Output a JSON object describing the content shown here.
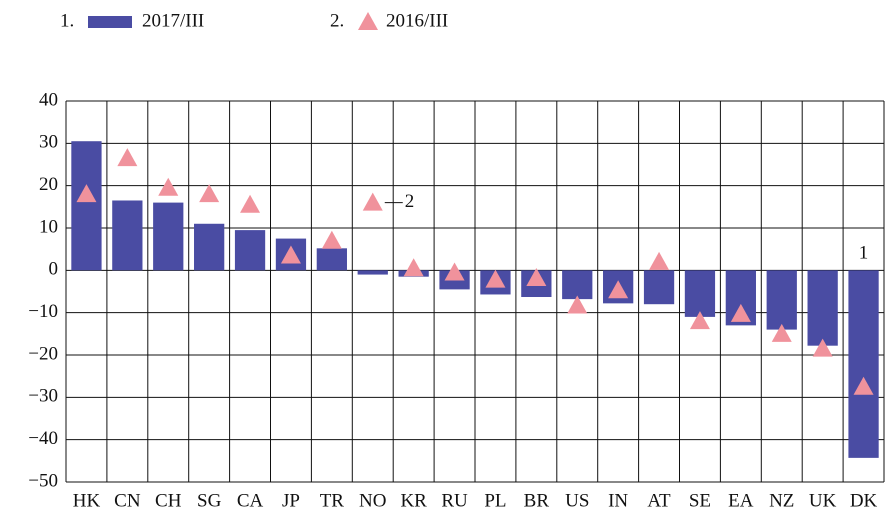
{
  "chart_data": {
    "type": "bar",
    "categories": [
      "HK",
      "CN",
      "CH",
      "SG",
      "CA",
      "JP",
      "TR",
      "NO",
      "KR",
      "RU",
      "PL",
      "BR",
      "US",
      "IN",
      "AT",
      "SE",
      "EA",
      "NZ",
      "UK",
      "DK"
    ],
    "series": [
      {
        "name": "2017/III",
        "legend_number": "1.",
        "color": "#4a4ca3",
        "marker": "bar",
        "values": [
          30.5,
          16.5,
          16,
          11,
          9.5,
          7.5,
          5.2,
          -1,
          -1.5,
          -4.5,
          -5.7,
          -6.3,
          -6.8,
          -7.8,
          -8,
          -11,
          -13,
          -14,
          -17.8,
          -44.3
        ]
      },
      {
        "name": "2016/III",
        "legend_number": "2.",
        "color": "#f0929c",
        "marker": "triangle",
        "values": [
          18,
          26.5,
          19.5,
          18,
          15.5,
          3.5,
          7,
          16,
          0.5,
          -0.5,
          -2.2,
          -1.8,
          -8.3,
          -4.7,
          2,
          -12,
          -10.3,
          -15,
          -18.5,
          -27.5
        ]
      }
    ],
    "annotations": [
      {
        "text": "1",
        "series": 0,
        "category": "DK"
      },
      {
        "text": "2",
        "series": 1,
        "category": "NO"
      }
    ],
    "ylim": [
      -50,
      40
    ],
    "yticks": [
      {
        "value": -50,
        "label": "−50"
      },
      {
        "value": -40,
        "label": "−40"
      },
      {
        "value": -30,
        "label": "−30"
      },
      {
        "value": -20,
        "label": "−20"
      },
      {
        "value": -10,
        "label": "−10"
      },
      0,
      10,
      20,
      30,
      40
    ],
    "grid": true
  }
}
